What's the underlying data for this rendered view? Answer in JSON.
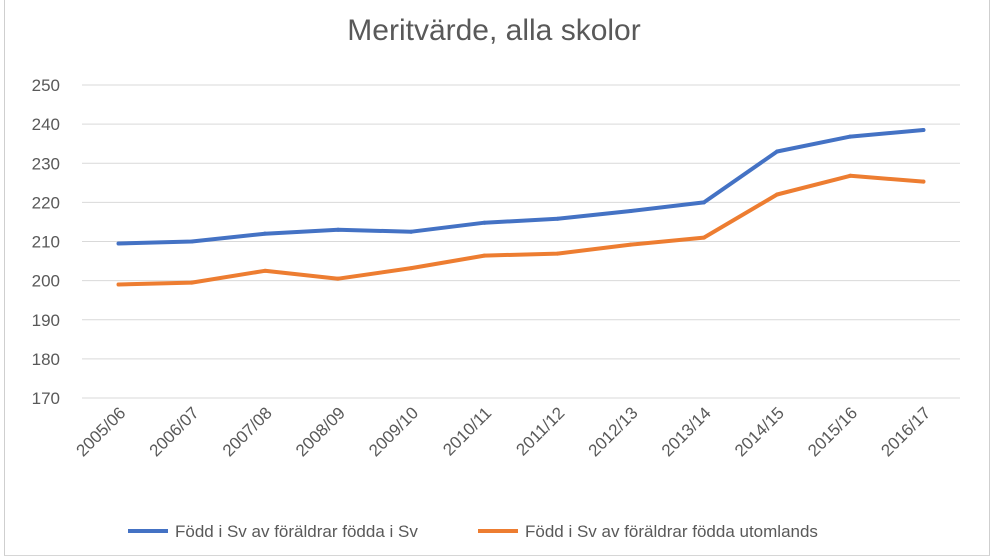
{
  "chart_data": {
    "type": "line",
    "title": "Meritvärde, alla skolor",
    "xlabel": "",
    "ylabel": "",
    "ylim": [
      170,
      250
    ],
    "yticks": [
      "170",
      "180",
      "190",
      "200",
      "210",
      "220",
      "230",
      "240",
      "250"
    ],
    "grid": true,
    "legend_position": "bottom",
    "categories": [
      "2005/06",
      "2006/07",
      "2007/08",
      "2008/09",
      "2009/10",
      "2010/11",
      "2011/12",
      "2012/13",
      "2013/14",
      "2014/15",
      "2015/16",
      "2016/17"
    ],
    "series": [
      {
        "name": "Född i Sv av föräldrar födda i Sv",
        "color": "#4472C4",
        "values": [
          209.5,
          210,
          212,
          213,
          212.5,
          214.8,
          215.8,
          217.8,
          220,
          233,
          236.8,
          238.5
        ]
      },
      {
        "name": "Född i Sv av föräldrar födda utomlands",
        "color": "#ED7D31",
        "values": [
          199,
          199.5,
          202.5,
          200.5,
          203.2,
          206.4,
          206.9,
          209.2,
          211,
          222,
          226.8,
          225.3
        ]
      }
    ]
  }
}
